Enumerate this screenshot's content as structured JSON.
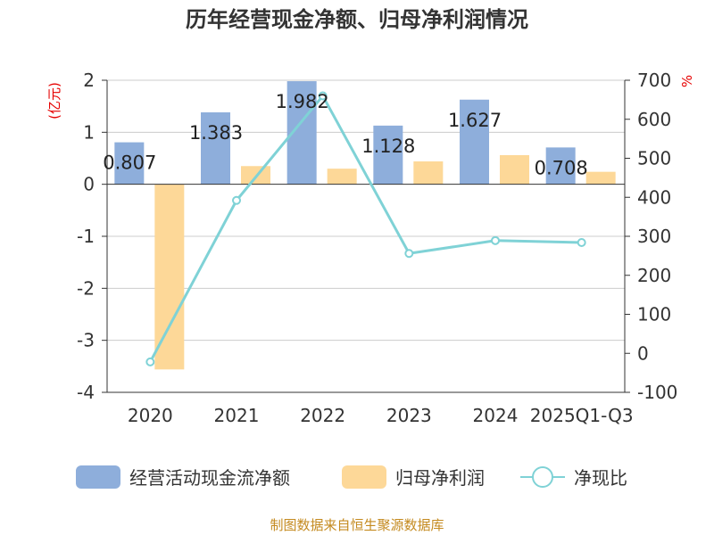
{
  "chart_data": {
    "type": "bar+line",
    "title": "历年经营现金净额、归母净利润情况",
    "categories": [
      "2020",
      "2021",
      "2022",
      "2023",
      "2024",
      "2025Q1-Q3"
    ],
    "series": [
      {
        "name": "经营活动现金流净额",
        "axis": "left",
        "type": "bar",
        "color": "#8eaedb",
        "values": [
          0.807,
          1.383,
          1.982,
          1.128,
          1.627,
          0.708
        ]
      },
      {
        "name": "归母净利润",
        "axis": "left",
        "type": "bar",
        "color": "#fdd898",
        "values": [
          -3.56,
          0.35,
          0.3,
          0.44,
          0.56,
          0.24
        ]
      },
      {
        "name": "净现比",
        "axis": "right",
        "type": "line",
        "color": "#7fd2d6",
        "values": [
          -22,
          392,
          660,
          256,
          289,
          284
        ]
      }
    ],
    "data_labels": [
      "0.807",
      "1.383",
      "1.982",
      "1.128",
      "1.627",
      "0.708"
    ],
    "left_axis": {
      "label": "(亿元)",
      "min": -4,
      "max": 2,
      "ticks": [
        "2",
        "1",
        "0",
        "-1",
        "-2",
        "-3",
        "-4"
      ]
    },
    "right_axis": {
      "label": "%",
      "min": -100,
      "max": 700,
      "ticks": [
        "700",
        "600",
        "500",
        "400",
        "300",
        "200",
        "100",
        "0",
        "-100"
      ]
    },
    "grid": true,
    "legend_position": "bottom"
  },
  "legend": [
    {
      "label": "经营活动现金流净额",
      "kind": "bar",
      "color": "#8eaedb"
    },
    {
      "label": "归母净利润",
      "kind": "bar",
      "color": "#fdd898"
    },
    {
      "label": "净现比",
      "kind": "line",
      "color": "#7fd2d6"
    }
  ],
  "footer": "制图数据来自恒生聚源数据库"
}
